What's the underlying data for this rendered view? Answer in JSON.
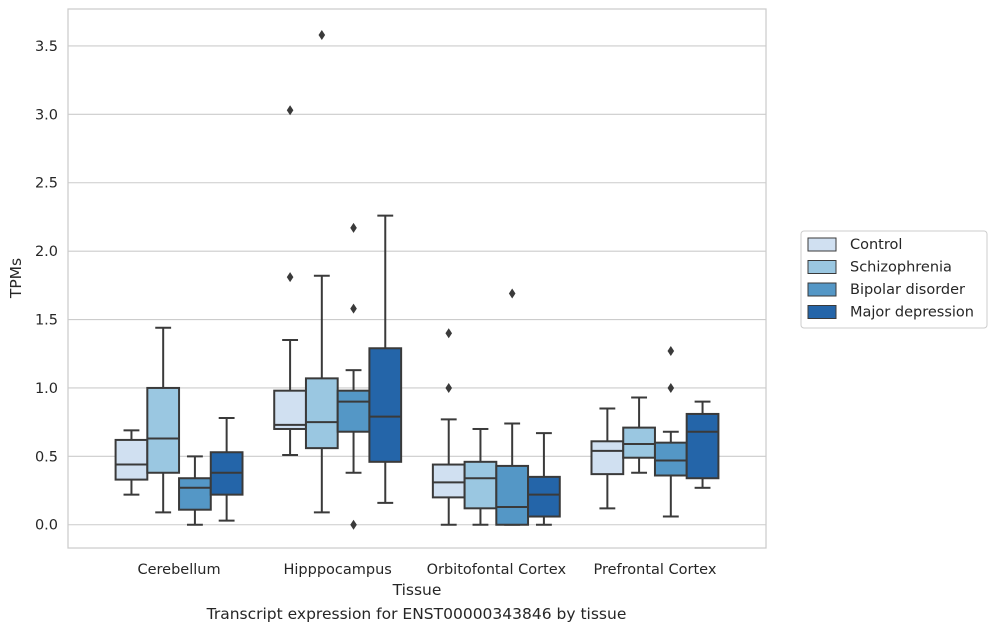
{
  "chart_data": {
    "type": "boxplot",
    "xlabel": "Tissue",
    "ylabel": "TPMs",
    "caption": "Transcript expression for ENST00000343846 by tissue",
    "ylim": [
      -0.17,
      3.77
    ],
    "yticks": [
      0.0,
      0.5,
      1.0,
      1.5,
      2.0,
      2.5,
      3.0,
      3.5
    ],
    "ytick_labels": [
      "0.0",
      "0.5",
      "1.0",
      "1.5",
      "2.0",
      "2.5",
      "3.0",
      "3.5"
    ],
    "grid": true,
    "legend_position": "outside-right",
    "categories": [
      "Cerebellum",
      "Hipppocampus",
      "Orbitofontal Cortex",
      "Prefrontal Cortex"
    ],
    "series": [
      {
        "name": "Control",
        "color": "#d0e0f1",
        "boxes": [
          {
            "whislo": 0.22,
            "q1": 0.33,
            "med": 0.44,
            "q3": 0.62,
            "whishi": 0.69,
            "fliers": []
          },
          {
            "whislo": 0.51,
            "q1": 0.7,
            "med": 0.73,
            "q3": 0.98,
            "whishi": 1.35,
            "fliers": [
              1.81,
              3.03
            ]
          },
          {
            "whislo": 0.0,
            "q1": 0.2,
            "med": 0.31,
            "q3": 0.44,
            "whishi": 0.77,
            "fliers": [
              1.0,
              1.4
            ]
          },
          {
            "whislo": 0.12,
            "q1": 0.37,
            "med": 0.54,
            "q3": 0.61,
            "whishi": 0.85,
            "fliers": []
          }
        ]
      },
      {
        "name": "Schizophrenia",
        "color": "#9ac7e1",
        "boxes": [
          {
            "whislo": 0.09,
            "q1": 0.38,
            "med": 0.63,
            "q3": 1.0,
            "whishi": 1.44,
            "fliers": []
          },
          {
            "whislo": 0.09,
            "q1": 0.56,
            "med": 0.75,
            "q3": 1.07,
            "whishi": 1.82,
            "fliers": [
              3.58
            ]
          },
          {
            "whislo": 0.0,
            "q1": 0.12,
            "med": 0.34,
            "q3": 0.46,
            "whishi": 0.7,
            "fliers": []
          },
          {
            "whislo": 0.38,
            "q1": 0.49,
            "med": 0.59,
            "q3": 0.71,
            "whishi": 0.93,
            "fliers": []
          }
        ]
      },
      {
        "name": "Bipolar disorder",
        "color": "#5497c6",
        "boxes": [
          {
            "whislo": 0.0,
            "q1": 0.11,
            "med": 0.27,
            "q3": 0.34,
            "whishi": 0.5,
            "fliers": []
          },
          {
            "whislo": 0.38,
            "q1": 0.68,
            "med": 0.9,
            "q3": 0.98,
            "whishi": 1.13,
            "fliers": [
              0.0,
              1.58,
              2.17
            ]
          },
          {
            "whislo": 0.0,
            "q1": 0.0,
            "med": 0.13,
            "q3": 0.43,
            "whishi": 0.74,
            "fliers": [
              1.69
            ]
          },
          {
            "whislo": 0.06,
            "q1": 0.36,
            "med": 0.47,
            "q3": 0.6,
            "whishi": 0.68,
            "fliers": [
              1.0,
              1.27
            ]
          }
        ]
      },
      {
        "name": "Major depression",
        "color": "#2465a9",
        "boxes": [
          {
            "whislo": 0.03,
            "q1": 0.22,
            "med": 0.38,
            "q3": 0.53,
            "whishi": 0.78,
            "fliers": []
          },
          {
            "whislo": 0.16,
            "q1": 0.46,
            "med": 0.79,
            "q3": 1.29,
            "whishi": 2.26,
            "fliers": []
          },
          {
            "whislo": 0.0,
            "q1": 0.06,
            "med": 0.22,
            "q3": 0.35,
            "whishi": 0.67,
            "fliers": []
          },
          {
            "whislo": 0.27,
            "q1": 0.34,
            "med": 0.68,
            "q3": 0.81,
            "whishi": 0.9,
            "fliers": []
          }
        ]
      }
    ]
  }
}
